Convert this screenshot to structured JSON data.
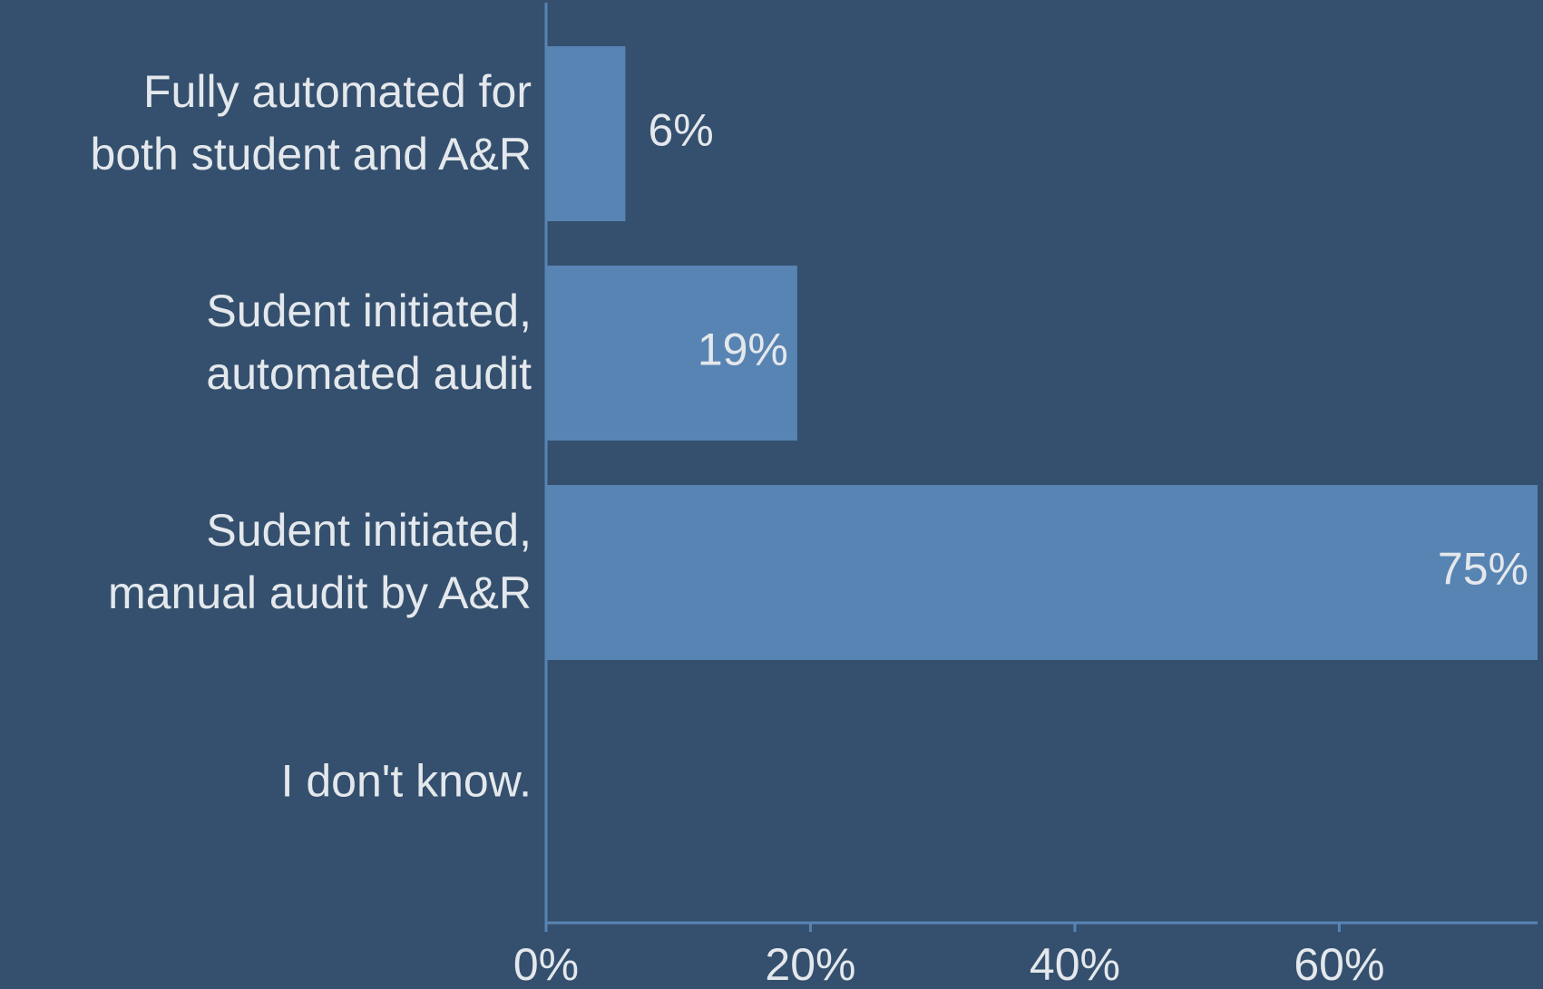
{
  "chart_data": {
    "type": "bar",
    "orientation": "horizontal",
    "categories": [
      "Fully automated for\nboth student and A&R",
      "Sudent initiated,\nautomated audit",
      "Sudent initiated,\nmanual audit by A&R",
      "I don't know."
    ],
    "values": [
      6,
      19,
      75,
      0
    ],
    "value_labels": [
      "6%",
      "19%",
      "75%",
      null
    ],
    "color": "#5884b3",
    "xlim": [
      0,
      75
    ],
    "xticks": [
      {
        "value": 0,
        "label": "0%"
      },
      {
        "value": 20,
        "label": "20%"
      },
      {
        "value": 40,
        "label": "40%"
      },
      {
        "value": 60,
        "label": "60%"
      }
    ],
    "grid": false
  }
}
